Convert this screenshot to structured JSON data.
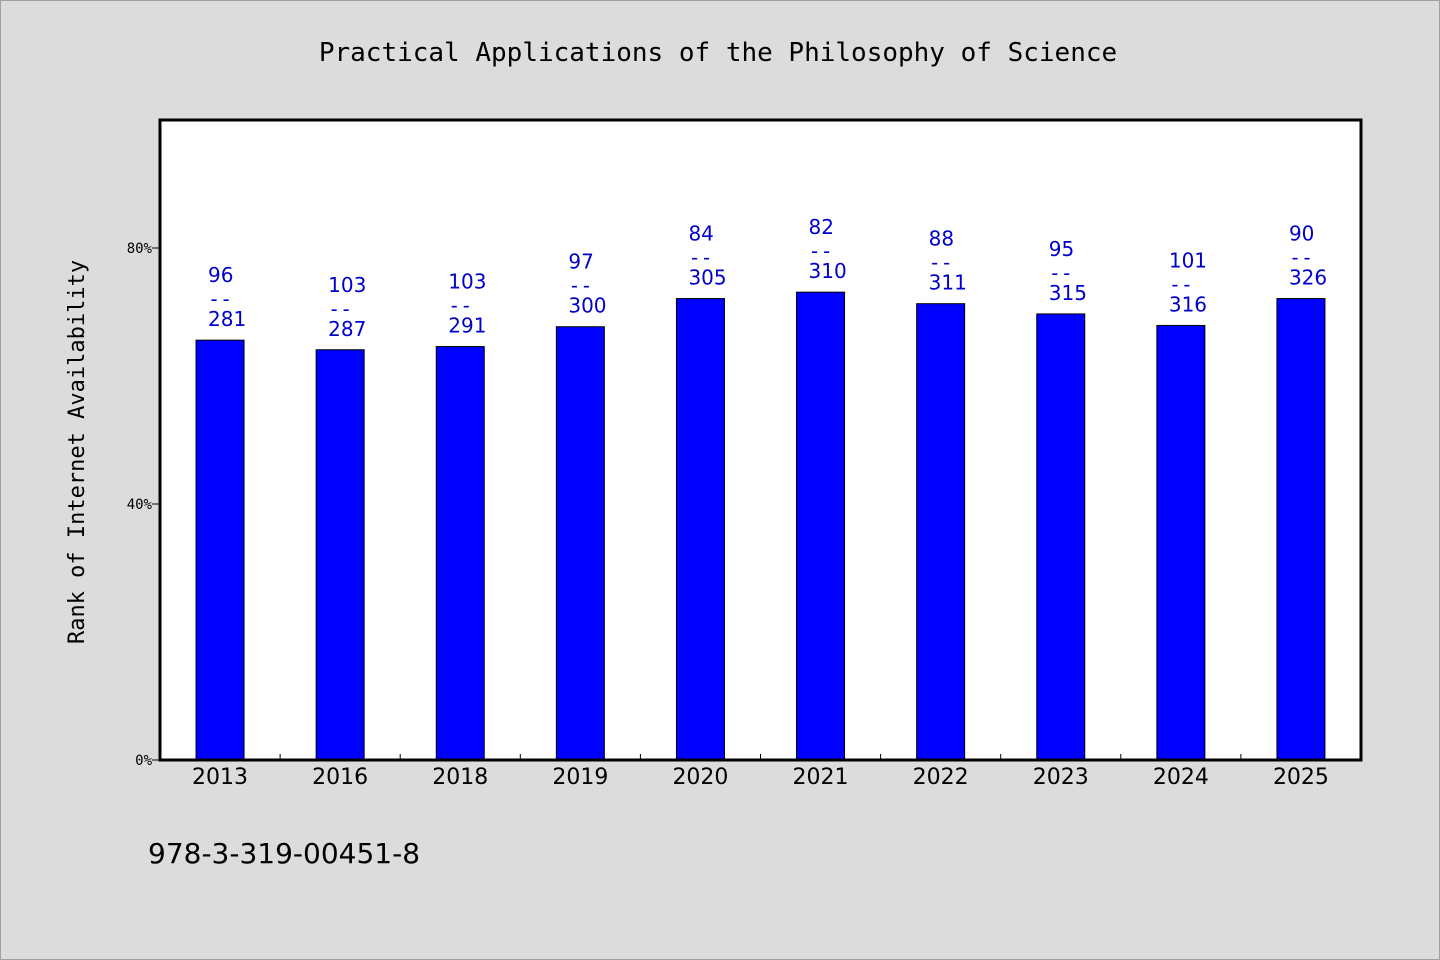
{
  "chart_data": {
    "type": "bar",
    "title": "Practical Applications of the Philosophy of Science",
    "xlabel": "",
    "ylabel": "Rank of Internet Availability",
    "categories": [
      "2013",
      "2016",
      "2018",
      "2019",
      "2020",
      "2021",
      "2022",
      "2023",
      "2024",
      "2025"
    ],
    "values": [
      65.6,
      64.1,
      64.6,
      67.7,
      72.1,
      73.1,
      71.3,
      69.7,
      67.9,
      72.1
    ],
    "value_unit": "%",
    "ylim": [
      0,
      100
    ],
    "yticks": [
      0,
      40,
      80
    ],
    "ytick_labels": [
      "0%",
      "40%",
      "80%"
    ],
    "bar_labels": [
      {
        "top": "96",
        "sep": "--",
        "bottom": "281"
      },
      {
        "top": "103",
        "sep": "--",
        "bottom": "287"
      },
      {
        "top": "103",
        "sep": "--",
        "bottom": "291"
      },
      {
        "top": "97",
        "sep": "--",
        "bottom": "300"
      },
      {
        "top": "84",
        "sep": "--",
        "bottom": "305"
      },
      {
        "top": "82",
        "sep": "--",
        "bottom": "310"
      },
      {
        "top": "88",
        "sep": "--",
        "bottom": "311"
      },
      {
        "top": "95",
        "sep": "--",
        "bottom": "315"
      },
      {
        "top": "101",
        "sep": "--",
        "bottom": "316"
      },
      {
        "top": "90",
        "sep": "--",
        "bottom": "326"
      }
    ],
    "grid": false,
    "legend": "none",
    "colors": {
      "bar": "#0000ff",
      "label": "#0000cc",
      "background": "#dcdcdc",
      "plot_background": "#ffffff"
    }
  },
  "footer": {
    "isbn": "978-3-319-00451-8"
  }
}
